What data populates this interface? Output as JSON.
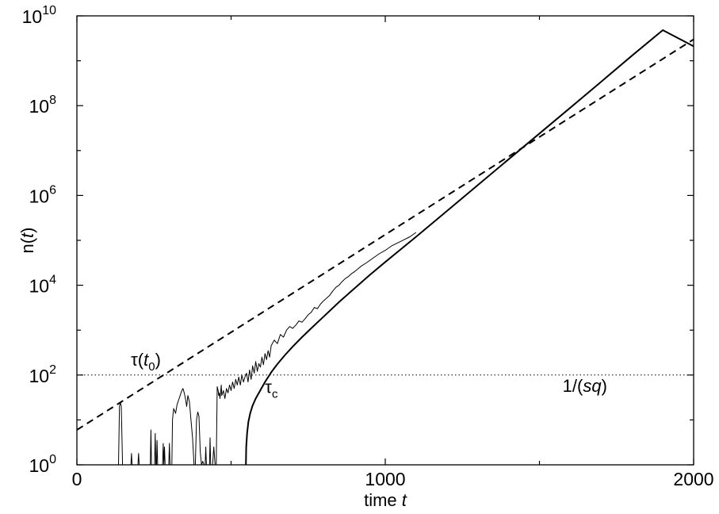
{
  "chart_data": {
    "type": "line",
    "title": "",
    "xlabel": "time",
    "xlabel_var": "t",
    "ylabel_prefix": "n(",
    "ylabel_var": "t",
    "ylabel_suffix": ")",
    "xlim": [
      0,
      2000
    ],
    "ylim": [
      1,
      10000000000
    ],
    "yscale": "log",
    "grid": false,
    "x_ticks": [
      0,
      1000,
      2000
    ],
    "x_minor_ticks": [
      500,
      1500
    ],
    "y_tick_exponents": [
      0,
      2,
      4,
      6,
      8,
      10
    ],
    "y_tick_base": "10",
    "series": [
      {
        "style": "dashed",
        "color": "#000000",
        "x": [
          0,
          2000
        ],
        "y": [
          6,
          3000000000
        ]
      },
      {
        "style": "solid-thick",
        "color": "#000000",
        "x": [
          548,
          549,
          552,
          556,
          562,
          570,
          580,
          595,
          610,
          630,
          650,
          675,
          700,
          730,
          760,
          800,
          850,
          900,
          950,
          1000,
          1100,
          1200,
          1300,
          1400,
          1500,
          1600,
          1700,
          1800,
          1900,
          2000
        ],
        "y": [
          1,
          2.5,
          5,
          9,
          14,
          21,
          30,
          46,
          70,
          115,
          175,
          280,
          430,
          700,
          1100,
          2000,
          4200,
          8500,
          17000,
          33000,
          120000,
          450000,
          1700000,
          6400000,
          24000000,
          90000000,
          340000000,
          1300000000,
          4800000000,
          2100000000
        ]
      },
      {
        "style": "solid-thin",
        "color": "#000000",
        "x": [
          135,
          138,
          141,
          144,
          148,
          151,
          155,
          175,
          177,
          179,
          198,
          200,
          202,
          238,
          240,
          242,
          252,
          254,
          256,
          258,
          260,
          262,
          278,
          280,
          282,
          284,
          286,
          298,
          300,
          302,
          308,
          310,
          312,
          314,
          320,
          325,
          330,
          335,
          340,
          344,
          348,
          352,
          356,
          360,
          365,
          370,
          375,
          380,
          384,
          388,
          392,
          396,
          400,
          404,
          408,
          412,
          414,
          416,
          418,
          420,
          425,
          430,
          432,
          434,
          436,
          440,
          444,
          448,
          452,
          455,
          458,
          460,
          462,
          464,
          466,
          468,
          470,
          475,
          480,
          485,
          490,
          495,
          500,
          505,
          510,
          515,
          520,
          525,
          530,
          535,
          540,
          545,
          550,
          555,
          560,
          565,
          570,
          575,
          580,
          585,
          590,
          595,
          600,
          605,
          610,
          615,
          620,
          625,
          630,
          640,
          650,
          660,
          670,
          680,
          690,
          700,
          710,
          720,
          730,
          740,
          750,
          760,
          770,
          780,
          790,
          800,
          810,
          820,
          830,
          840,
          850,
          860,
          870,
          880,
          890,
          900,
          920,
          940,
          960,
          980,
          1000,
          1020,
          1050,
          1080,
          1100
        ],
        "y": [
          1,
          20,
          25,
          20,
          1,
          1,
          1,
          1,
          1.8,
          1,
          1,
          1.8,
          1,
          1,
          6,
          1,
          1,
          5,
          1,
          1,
          3.5,
          1,
          1,
          3,
          1,
          2.5,
          1,
          1,
          3,
          1,
          1,
          10,
          14,
          18,
          14,
          22,
          28,
          35,
          45,
          50,
          40,
          30,
          20,
          35,
          25,
          10,
          4,
          1,
          1,
          10,
          15,
          12,
          2,
          1,
          1.2,
          1,
          1,
          1,
          2.5,
          1,
          1,
          1,
          4,
          1,
          1,
          1,
          2.5,
          1,
          1,
          55,
          45,
          35,
          40,
          30,
          40,
          60,
          35,
          45,
          30,
          50,
          40,
          60,
          45,
          70,
          50,
          80,
          60,
          90,
          60,
          100,
          70,
          90,
          110,
          70,
          130,
          80,
          160,
          110,
          200,
          120,
          180,
          150,
          250,
          170,
          300,
          220,
          350,
          250,
          450,
          600,
          500,
          800,
          700,
          1000,
          1200,
          1100,
          1300,
          1600,
          1500,
          1800,
          2200,
          2500,
          3200,
          3000,
          3800,
          4500,
          5200,
          6000,
          7500,
          9000,
          10000,
          12000,
          14000,
          15500,
          18000,
          20000,
          26000,
          32000,
          40000,
          50000,
          60000,
          75000,
          95000,
          120000,
          150000
        ]
      },
      {
        "style": "dotted",
        "color": "#000000",
        "x": [
          0,
          2000
        ],
        "y": [
          100,
          100
        ]
      }
    ],
    "annotations": [
      {
        "id": "tau_t0",
        "text_pre": "τ(",
        "var": "t",
        "sub": "0",
        "text_post": ")",
        "x": 175,
        "y": 160
      },
      {
        "id": "tau_c",
        "text_pre": "τ",
        "sub": "c",
        "x": 610,
        "y": 40
      },
      {
        "id": "one_over_sq",
        "text_pre": "1/(",
        "var": "sq",
        "text_post": ")",
        "x": 1575,
        "y": 42
      }
    ]
  }
}
